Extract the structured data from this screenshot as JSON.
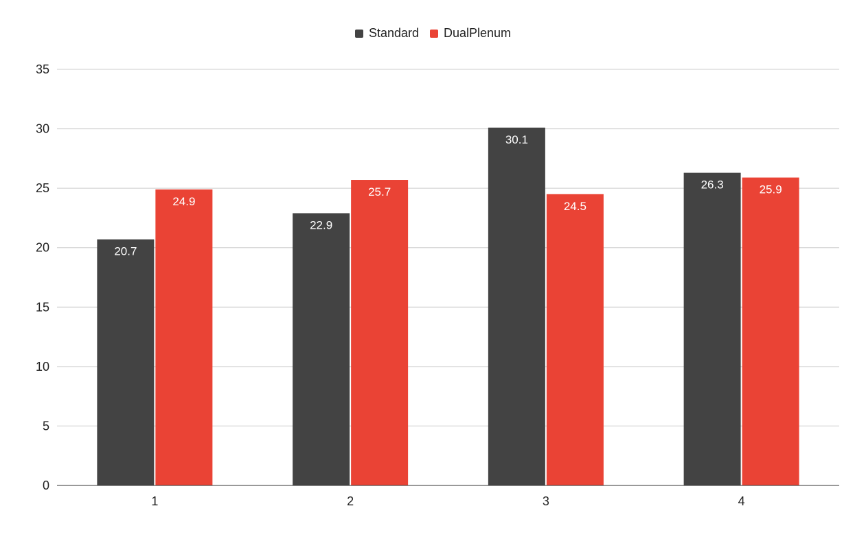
{
  "chart_data": {
    "type": "bar",
    "categories": [
      "1",
      "2",
      "3",
      "4"
    ],
    "series": [
      {
        "name": "Standard",
        "color": "#434343",
        "values": [
          20.7,
          22.9,
          30.1,
          26.3
        ]
      },
      {
        "name": "DualPlenum",
        "color": "#ea4335",
        "values": [
          24.9,
          25.7,
          24.5,
          25.9
        ]
      }
    ],
    "title": "",
    "xlabel": "",
    "ylabel": "",
    "ylim": [
      0,
      35
    ],
    "yticks": [
      "0",
      "5",
      "10",
      "15",
      "20",
      "25",
      "30",
      "35"
    ],
    "grid": true,
    "legend_position": "top-center",
    "data_labels": true
  }
}
